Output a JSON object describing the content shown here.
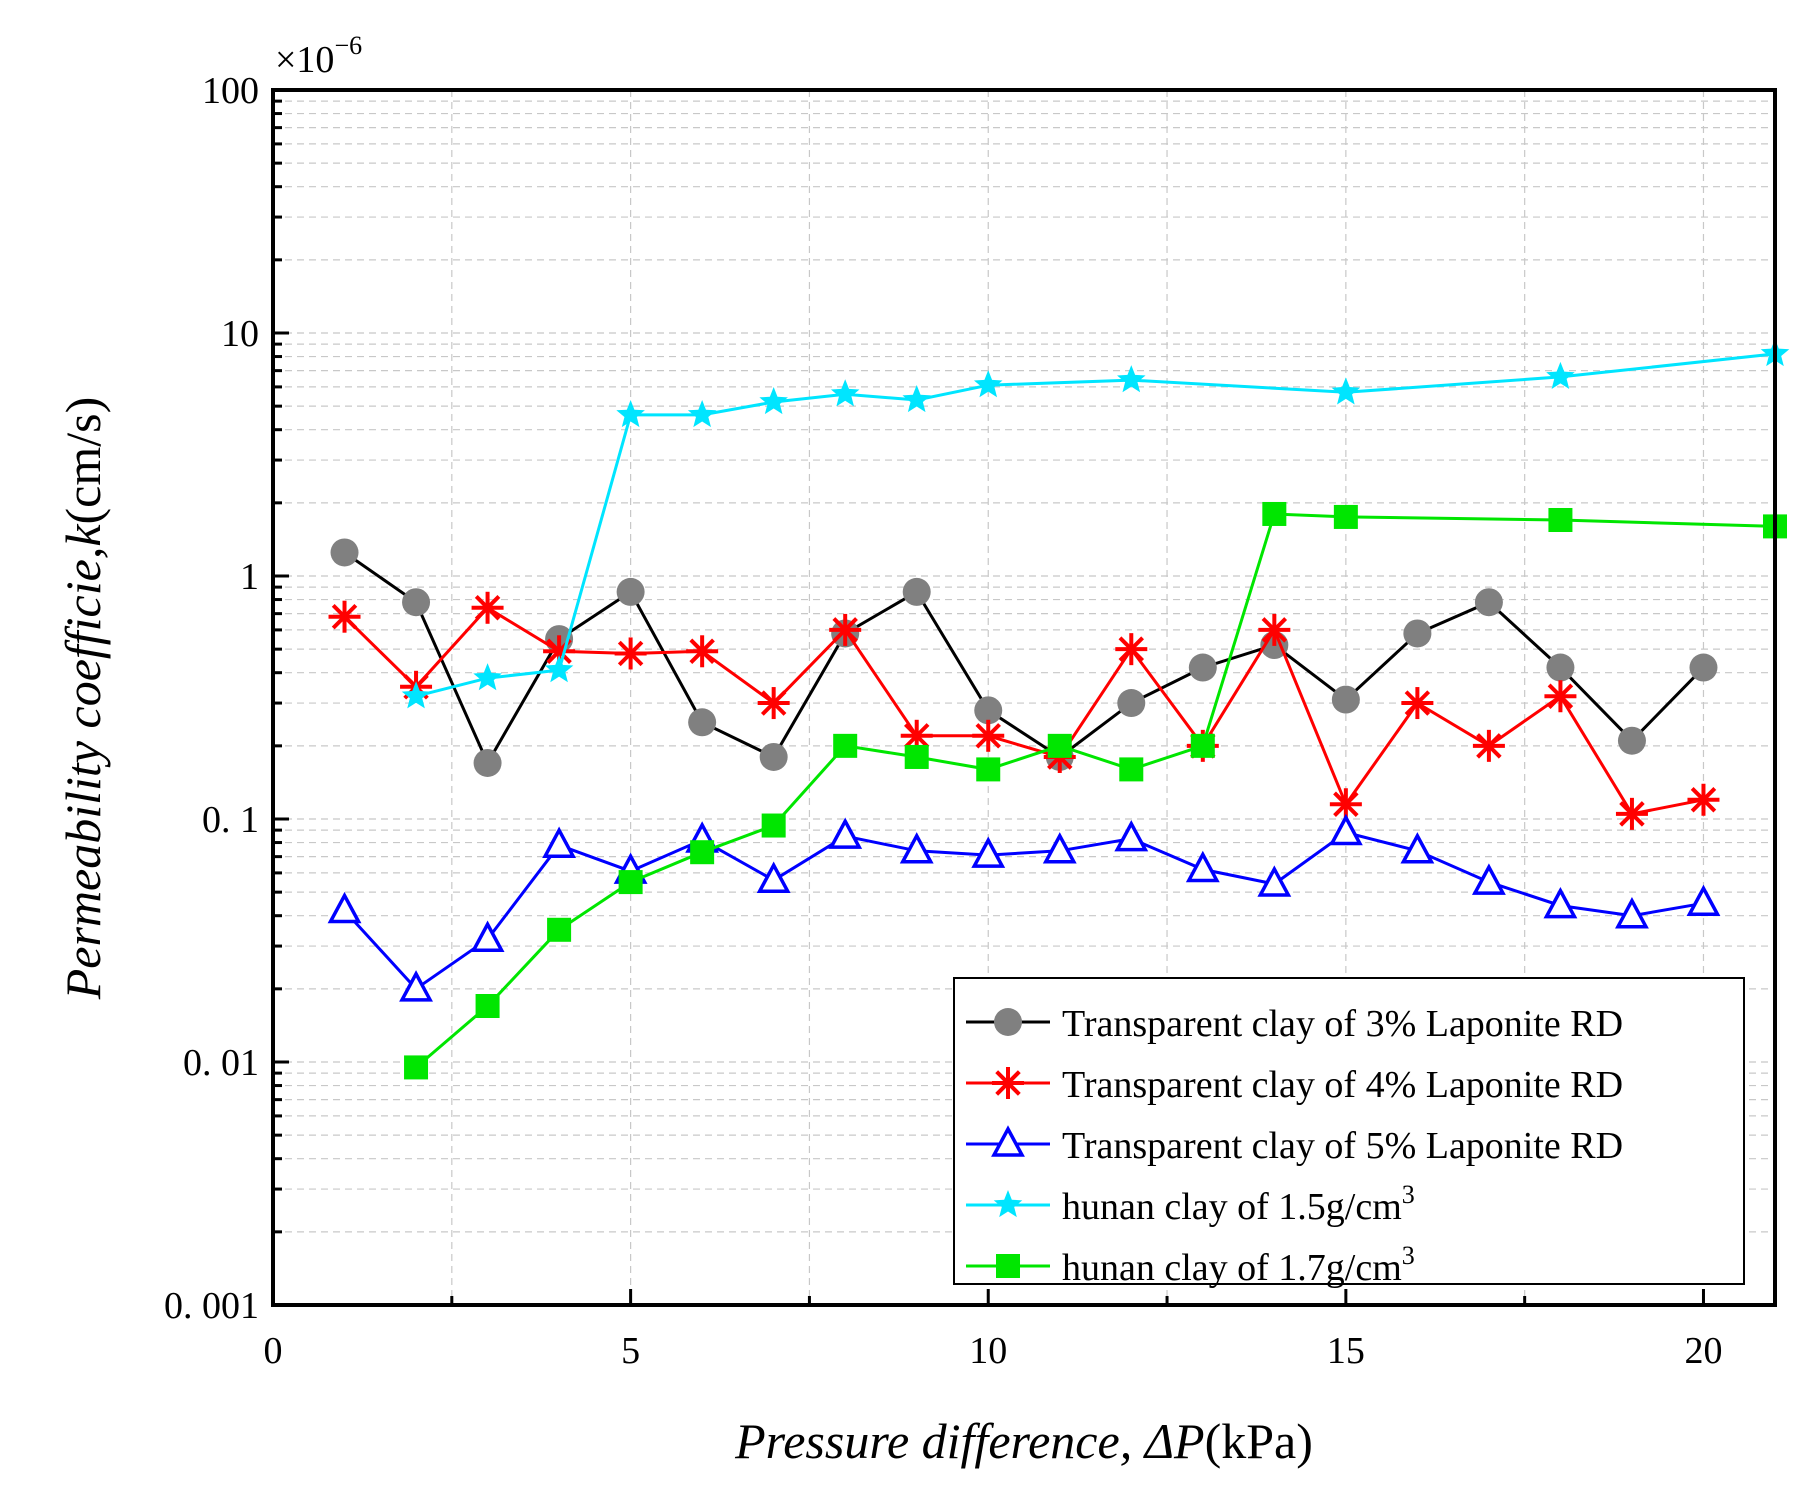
{
  "chart_data": {
    "type": "line",
    "title": "",
    "xlabel_italic": "Pressure difference, ΔP",
    "xlabel_unit": "(kPa)",
    "ylabel_italic": "Permeability coefficie,k",
    "ylabel_unit": "(cm/s)",
    "y_multiplier": "×10",
    "y_multiplier_exp": "−6",
    "xlim": [
      0,
      21
    ],
    "ylim": [
      0.001,
      100
    ],
    "yscale": "log",
    "x_ticks": [
      0,
      5,
      10,
      15,
      20
    ],
    "x_tick_labels": [
      "0",
      "5",
      "10",
      "15",
      "20"
    ],
    "y_ticks": [
      0.001,
      0.01,
      0.1,
      1,
      10,
      100
    ],
    "y_tick_labels": [
      "0. 001",
      "0. 01",
      "0. 1",
      "1",
      "10",
      "100"
    ],
    "grid": true,
    "legend_position": "bottom-right",
    "series": [
      {
        "name": "Transparent clay of 3% Laponite RD",
        "color": "#000000",
        "marker_color": "#808080",
        "marker": "circle",
        "x": [
          1,
          2,
          3,
          4,
          5,
          6,
          7,
          8,
          9,
          10,
          11,
          12,
          13,
          14,
          15,
          16,
          17,
          18,
          19,
          20
        ],
        "y": [
          1.25,
          0.78,
          0.17,
          0.55,
          0.86,
          0.25,
          0.18,
          0.58,
          0.86,
          0.28,
          0.18,
          0.3,
          0.42,
          0.52,
          0.31,
          0.58,
          0.78,
          0.42,
          0.21,
          0.42
        ]
      },
      {
        "name": "Transparent clay of 4% Laponite RD",
        "color": "#ff0000",
        "marker_color": "#ff0000",
        "marker": "asterisk",
        "x": [
          1,
          2,
          3,
          4,
          5,
          6,
          7,
          8,
          9,
          10,
          11,
          12,
          13,
          14,
          15,
          16,
          17,
          18,
          19,
          20
        ],
        "y": [
          0.68,
          0.35,
          0.74,
          0.49,
          0.48,
          0.49,
          0.3,
          0.6,
          0.22,
          0.22,
          0.18,
          0.5,
          0.2,
          0.6,
          0.115,
          0.3,
          0.2,
          0.32,
          0.105,
          0.12
        ]
      },
      {
        "name": "Transparent clay of 5% Laponite RD",
        "color": "#0000ff",
        "marker_color": "#0000ff",
        "marker": "triangle",
        "x": [
          1,
          2,
          3,
          4,
          5,
          6,
          7,
          8,
          9,
          10,
          11,
          12,
          13,
          14,
          15,
          16,
          17,
          18,
          19,
          20
        ],
        "y": [
          0.042,
          0.02,
          0.032,
          0.078,
          0.061,
          0.082,
          0.056,
          0.085,
          0.074,
          0.071,
          0.074,
          0.083,
          0.062,
          0.054,
          0.088,
          0.074,
          0.055,
          0.044,
          0.04,
          0.045
        ]
      },
      {
        "name": "hunan clay of 1.5g/cm",
        "name_sup": "3",
        "color": "#00e5ff",
        "marker_color": "#00e5ff",
        "marker": "star",
        "x": [
          2,
          3,
          4,
          5,
          6,
          7,
          8,
          9,
          10,
          12,
          15,
          18,
          21
        ],
        "y": [
          0.32,
          0.38,
          0.41,
          4.6,
          4.6,
          5.2,
          5.6,
          5.3,
          6.1,
          6.4,
          5.7,
          6.6,
          8.2
        ]
      },
      {
        "name": "hunan clay of 1.7g/cm",
        "name_sup": "3",
        "color": "#00e600",
        "marker_color": "#00e600",
        "marker": "square",
        "x": [
          2,
          3,
          4,
          5,
          6,
          7,
          8,
          9,
          10,
          11,
          12,
          13,
          14,
          15,
          18,
          21
        ],
        "y": [
          0.0095,
          0.017,
          0.035,
          0.055,
          0.073,
          0.094,
          0.2,
          0.18,
          0.16,
          0.2,
          0.16,
          0.2,
          1.8,
          1.75,
          1.7,
          1.6
        ]
      }
    ]
  }
}
